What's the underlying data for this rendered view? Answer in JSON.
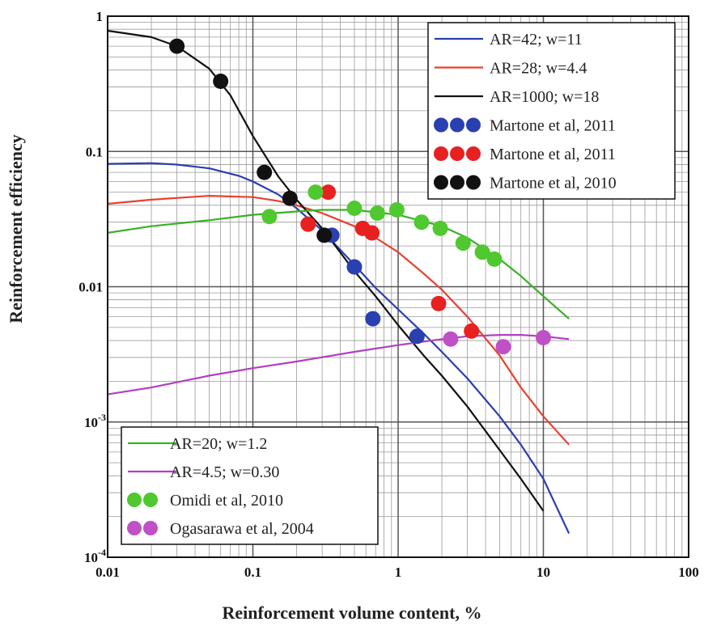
{
  "chart_data": {
    "type": "line",
    "xlabel": "Reinforcement volume content, %",
    "ylabel": "Reinforcement efficiency",
    "xscale": "log",
    "yscale": "log",
    "xlim": [
      0.01,
      100
    ],
    "ylim": [
      0.0001,
      1
    ],
    "grid": true,
    "x_ticks": [
      "0.01",
      "0.1",
      "1",
      "10",
      "100"
    ],
    "y_ticks": [
      {
        "label": "1",
        "value": 1
      },
      {
        "label": "0.1",
        "value": 0.1
      },
      {
        "label": "0.01",
        "value": 0.01
      },
      {
        "label": "10",
        "sup": "-3",
        "value": 0.001
      },
      {
        "label": "10",
        "sup": "-4",
        "value": 0.0001
      }
    ],
    "legend_upper": {
      "position": "top-right",
      "entries": [
        "AR=42; w=11",
        "AR=28; w=4.4",
        "AR=1000; w=18",
        "Martone et al, 2011",
        "Martone et al, 2011",
        "Martone et al, 2010"
      ]
    },
    "legend_lower": {
      "position": "bottom-left",
      "entries": [
        "AR=20; w=1.2",
        "AR=4.5; w=0.30",
        "Omidi et al, 2010",
        "Ogasarawa et al, 2004"
      ]
    },
    "series": [
      {
        "name": "AR=42; w=11",
        "kind": "line",
        "color": "#2a3fb0",
        "x": [
          0.01,
          0.02,
          0.03,
          0.05,
          0.08,
          0.1,
          0.15,
          0.2,
          0.3,
          0.5,
          0.7,
          1,
          1.5,
          2,
          3,
          5,
          7,
          10,
          15
        ],
        "y": [
          0.081,
          0.082,
          0.08,
          0.075,
          0.066,
          0.06,
          0.048,
          0.038,
          0.026,
          0.0145,
          0.0098,
          0.0068,
          0.0045,
          0.0033,
          0.0021,
          0.0011,
          0.00068,
          0.00038,
          0.00015
        ]
      },
      {
        "name": "AR=28; w=4.4",
        "kind": "line",
        "color": "#e84030",
        "x": [
          0.01,
          0.02,
          0.05,
          0.1,
          0.15,
          0.2,
          0.3,
          0.5,
          0.7,
          1,
          1.5,
          2,
          3,
          5,
          7,
          10,
          15
        ],
        "y": [
          0.041,
          0.044,
          0.047,
          0.046,
          0.043,
          0.04,
          0.035,
          0.028,
          0.023,
          0.018,
          0.0125,
          0.0095,
          0.006,
          0.0031,
          0.0018,
          0.0011,
          0.00068
        ]
      },
      {
        "name": "AR=1000; w=18",
        "kind": "line",
        "color": "#111111",
        "x": [
          0.01,
          0.02,
          0.03,
          0.05,
          0.07,
          0.1,
          0.15,
          0.2,
          0.3,
          0.5,
          0.7,
          1,
          1.5,
          2,
          3,
          5,
          7,
          10
        ],
        "y": [
          0.78,
          0.7,
          0.6,
          0.41,
          0.26,
          0.13,
          0.065,
          0.044,
          0.027,
          0.013,
          0.0085,
          0.0052,
          0.0031,
          0.0022,
          0.0013,
          0.00062,
          0.00038,
          0.00022
        ]
      },
      {
        "name": "AR=20; w=1.2",
        "kind": "line",
        "color": "#3ab028",
        "x": [
          0.01,
          0.02,
          0.05,
          0.1,
          0.2,
          0.3,
          0.5,
          1,
          2,
          3,
          5,
          7,
          10,
          15
        ],
        "y": [
          0.025,
          0.028,
          0.031,
          0.034,
          0.036,
          0.037,
          0.037,
          0.034,
          0.028,
          0.023,
          0.016,
          0.012,
          0.0085,
          0.0058
        ]
      },
      {
        "name": "AR=4.5; w=0.30",
        "kind": "line",
        "color": "#b040c0",
        "x": [
          0.01,
          0.02,
          0.05,
          0.1,
          0.2,
          0.5,
          1,
          2,
          3,
          5,
          7,
          10,
          15
        ],
        "y": [
          0.0016,
          0.0018,
          0.0022,
          0.0025,
          0.0028,
          0.0033,
          0.0037,
          0.0041,
          0.0043,
          0.0044,
          0.0044,
          0.0043,
          0.0041
        ]
      },
      {
        "name": "Martone et al, 2011",
        "kind": "points",
        "color": "#2a3fb0",
        "x": [
          0.35,
          0.5,
          0.67,
          1.35
        ],
        "y": [
          0.024,
          0.014,
          0.0058,
          0.0043
        ]
      },
      {
        "name": "Martone et al, 2011",
        "kind": "points",
        "color": "#e82020",
        "x": [
          0.24,
          0.33,
          0.57,
          0.66,
          1.9,
          3.2
        ],
        "y": [
          0.029,
          0.05,
          0.027,
          0.025,
          0.0075,
          0.0047
        ]
      },
      {
        "name": "Martone et al, 2010",
        "kind": "points",
        "color": "#111111",
        "x": [
          0.03,
          0.06,
          0.12,
          0.18,
          0.31
        ],
        "y": [
          0.6,
          0.33,
          0.07,
          0.045,
          0.024
        ]
      },
      {
        "name": "Omidi et al, 2010",
        "kind": "points",
        "color": "#50c830",
        "x": [
          0.13,
          0.27,
          0.5,
          0.72,
          0.98,
          1.45,
          1.95,
          2.8,
          3.8,
          4.6
        ],
        "y": [
          0.033,
          0.05,
          0.038,
          0.035,
          0.037,
          0.03,
          0.027,
          0.021,
          0.018,
          0.016
        ]
      },
      {
        "name": "Ogasarawa et al, 2004",
        "kind": "points",
        "color": "#c050c8",
        "x": [
          2.3,
          5.3,
          10
        ],
        "y": [
          0.0041,
          0.0036,
          0.0042
        ]
      }
    ]
  }
}
